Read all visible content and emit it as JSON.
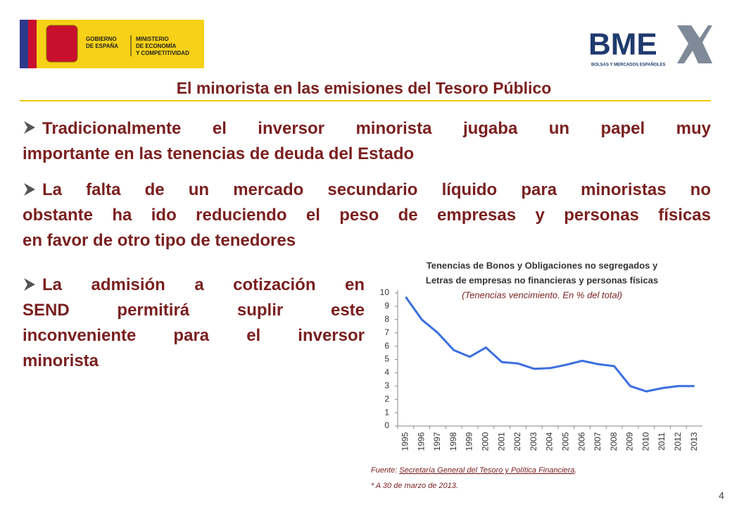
{
  "header": {
    "gov_logo": [
      "GOBIERNO",
      "DE ESPAÑA"
    ],
    "ministry": [
      "MINISTERIO",
      "DE ECONOMÍA",
      "Y COMPETITIVIDAD"
    ],
    "bme_logo": "BME",
    "bme_tagline": "BOLSAS Y MERCADOS ESPAÑOLES",
    "title": "El minorista en las emisiones del Tesoro Público"
  },
  "bullets": [
    {
      "lines": [
        "Tradicionalmente el inversor minorista jugaba un papel muy",
        "importante en las tenencias de deuda del Estado"
      ]
    },
    {
      "lines": [
        "La falta de un mercado secundario líquido para minoristas no",
        "obstante ha ido reduciendo el peso de empresas y personas físicas",
        "en favor de otro tipo de tenedores"
      ]
    },
    {
      "lines": [
        "La admisión a cotización en",
        "SEND permitirá suplir este",
        "inconveniente para el inversor",
        "minorista"
      ]
    }
  ],
  "chart_data": {
    "type": "line",
    "title": [
      "Tenencias de Bonos y Obligaciones no segregados y",
      "Letras de empresas no financieras y personas físicas"
    ],
    "subtitle": "(Tenencias vencimiento. En % del total)",
    "categories": [
      "1995",
      "1996",
      "1997",
      "1998",
      "1999",
      "2000",
      "2001",
      "2002",
      "2003",
      "2004",
      "2005",
      "2006",
      "2007",
      "2008",
      "2009",
      "2010",
      "2011",
      "2012",
      "2013"
    ],
    "values": [
      9.7,
      8.0,
      7.0,
      5.7,
      5.2,
      5.9,
      4.8,
      4.7,
      4.3,
      4.35,
      4.6,
      4.9,
      4.65,
      4.5,
      3.0,
      2.6,
      2.85,
      3.0,
      3.0
    ],
    "color": "#3b6fe0",
    "ylim": [
      0,
      10
    ],
    "yticks": [
      0,
      1,
      2,
      3,
      4,
      5,
      6,
      7,
      8,
      9,
      10
    ],
    "grid": false
  },
  "footer": {
    "source_label": "Fuente:",
    "source_link": "Secretaría General del Tesoro y Política Financiera",
    "source_end": ".",
    "note": "* A 30 de marzo de 2013.",
    "page": "4"
  }
}
